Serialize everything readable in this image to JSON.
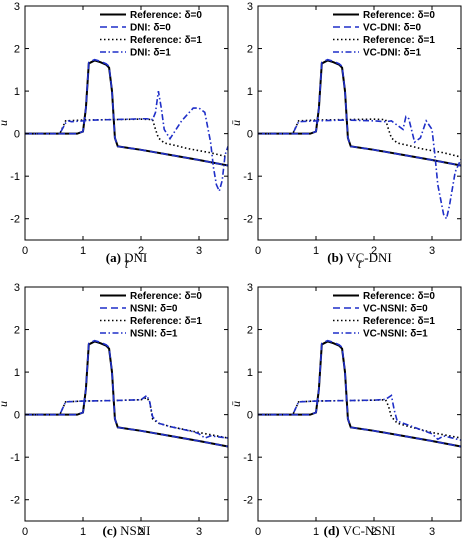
{
  "chart_data": [
    {
      "type": "line",
      "caption_letter": "(a)",
      "caption_text": "DNI",
      "xlabel": "t̄",
      "ylabel": "u",
      "xlim": [
        0,
        3.5
      ],
      "ylim": [
        -2.5,
        3
      ],
      "xticks": [
        0,
        1,
        2,
        3
      ],
      "yticks": [
        -2,
        -1,
        0,
        1,
        2,
        3
      ],
      "legend_position": "top-right",
      "series": [
        {
          "name": "Reference: δ=0",
          "color": "#000000",
          "style": "solid",
          "x": [
            0,
            0.9,
            1.0,
            1.05,
            1.1,
            1.2,
            1.3,
            1.4,
            1.45,
            1.5,
            1.55,
            1.6,
            2.0,
            2.5,
            3.0,
            3.5
          ],
          "y": [
            0,
            0,
            0.05,
            0.6,
            1.65,
            1.72,
            1.68,
            1.62,
            1.55,
            1.0,
            -0.1,
            -0.3,
            -0.38,
            -0.5,
            -0.62,
            -0.75
          ]
        },
        {
          "name": "DNI: δ=0",
          "color": "#1f2fc8",
          "style": "dash",
          "x": [
            0,
            0.9,
            1.0,
            1.05,
            1.1,
            1.2,
            1.3,
            1.4,
            1.45,
            1.5,
            1.55,
            1.6,
            2.0,
            2.5,
            3.0,
            3.5
          ],
          "y": [
            0,
            0,
            0.05,
            0.6,
            1.68,
            1.74,
            1.7,
            1.64,
            1.58,
            1.0,
            -0.1,
            -0.3,
            -0.38,
            -0.5,
            -0.62,
            -0.75
          ]
        },
        {
          "name": "Reference: δ=1",
          "color": "#000000",
          "style": "dot",
          "x": [
            0,
            0.6,
            0.7,
            1.0,
            1.5,
            2.0,
            2.2,
            2.25,
            2.3,
            2.4,
            2.6,
            2.8,
            3.0,
            3.2,
            3.5
          ],
          "y": [
            0,
            0,
            0.3,
            0.32,
            0.33,
            0.34,
            0.33,
            0.1,
            -0.1,
            -0.22,
            -0.28,
            -0.35,
            -0.4,
            -0.45,
            -0.55
          ]
        },
        {
          "name": "DNI: δ=1",
          "color": "#1f2fc8",
          "style": "dashdot",
          "x": [
            0,
            0.6,
            0.7,
            0.75,
            0.8,
            1.0,
            1.2,
            1.5,
            1.8,
            2.0,
            2.1,
            2.2,
            2.25,
            2.3,
            2.35,
            2.4,
            2.5,
            2.7,
            2.9,
            3.0,
            3.1,
            3.2,
            3.25,
            3.3,
            3.35,
            3.4,
            3.45,
            3.5
          ],
          "y": [
            0,
            0,
            0.25,
            0.3,
            0.28,
            0.3,
            0.32,
            0.33,
            0.34,
            0.35,
            0.35,
            0.33,
            0.5,
            1.0,
            0.6,
            0.1,
            -0.12,
            0.3,
            0.6,
            0.6,
            0.5,
            -0.2,
            -0.8,
            -1.2,
            -1.35,
            -1.1,
            -0.5,
            -0.3
          ]
        }
      ]
    },
    {
      "type": "line",
      "caption_letter": "(b)",
      "caption_text": "VC-DNI",
      "xlabel": "t̄",
      "ylabel": "ū",
      "xlim": [
        0,
        3.5
      ],
      "ylim": [
        -2.5,
        3
      ],
      "xticks": [
        0,
        1,
        2,
        3
      ],
      "yticks": [
        -2,
        -1,
        0,
        1,
        2,
        3
      ],
      "legend_position": "top-right",
      "series": [
        {
          "name": "Reference: δ=0",
          "color": "#000000",
          "style": "solid",
          "x": [
            0,
            0.9,
            1.0,
            1.05,
            1.1,
            1.2,
            1.3,
            1.4,
            1.45,
            1.5,
            1.55,
            1.6,
            2.0,
            2.5,
            3.0,
            3.5
          ],
          "y": [
            0,
            0,
            0.05,
            0.6,
            1.65,
            1.72,
            1.68,
            1.62,
            1.55,
            1.0,
            -0.1,
            -0.3,
            -0.38,
            -0.5,
            -0.62,
            -0.75
          ]
        },
        {
          "name": "VC-DNI: δ=0",
          "color": "#1f2fc8",
          "style": "dash",
          "x": [
            0,
            0.9,
            1.0,
            1.05,
            1.1,
            1.2,
            1.3,
            1.4,
            1.45,
            1.5,
            1.55,
            1.6,
            2.0,
            2.5,
            3.0,
            3.5
          ],
          "y": [
            0,
            0,
            0.05,
            0.6,
            1.68,
            1.74,
            1.7,
            1.64,
            1.58,
            1.0,
            -0.1,
            -0.3,
            -0.38,
            -0.5,
            -0.62,
            -0.75
          ]
        },
        {
          "name": "Reference: δ=1",
          "color": "#000000",
          "style": "dot",
          "x": [
            0,
            0.6,
            0.7,
            1.0,
            1.5,
            2.0,
            2.2,
            2.25,
            2.3,
            2.4,
            2.6,
            2.8,
            3.0,
            3.2,
            3.5
          ],
          "y": [
            0,
            0,
            0.3,
            0.32,
            0.33,
            0.34,
            0.33,
            0.1,
            -0.1,
            -0.22,
            -0.28,
            -0.35,
            -0.4,
            -0.45,
            -0.55
          ]
        },
        {
          "name": "VC-DNI: δ=1",
          "color": "#1f2fc8",
          "style": "dashdot",
          "x": [
            0,
            0.6,
            0.7,
            1.0,
            1.5,
            2.0,
            2.2,
            2.3,
            2.4,
            2.5,
            2.55,
            2.6,
            2.7,
            2.8,
            2.9,
            3.0,
            3.05,
            3.1,
            3.2,
            3.25,
            3.3,
            3.4,
            3.5
          ],
          "y": [
            0,
            0,
            0.28,
            0.3,
            0.32,
            0.3,
            0.28,
            0.3,
            0.2,
            0.1,
            0.4,
            0.35,
            -0.2,
            -0.1,
            0.3,
            0.1,
            -0.5,
            -1.2,
            -1.9,
            -2.0,
            -1.7,
            -0.9,
            -0.6
          ]
        }
      ]
    },
    {
      "type": "line",
      "caption_letter": "(c)",
      "caption_text": "NSNI",
      "xlabel": "t̄",
      "ylabel": "u",
      "xlim": [
        0,
        3.5
      ],
      "ylim": [
        -2.5,
        3
      ],
      "xticks": [
        0,
        1,
        2,
        3
      ],
      "yticks": [
        -2,
        -1,
        0,
        1,
        2,
        3
      ],
      "legend_position": "top-right",
      "series": [
        {
          "name": "Reference: δ=0",
          "color": "#000000",
          "style": "solid",
          "x": [
            0,
            0.9,
            1.0,
            1.05,
            1.1,
            1.2,
            1.3,
            1.4,
            1.45,
            1.5,
            1.55,
            1.6,
            2.0,
            2.5,
            3.0,
            3.5
          ],
          "y": [
            0,
            0,
            0.05,
            0.6,
            1.65,
            1.72,
            1.68,
            1.62,
            1.55,
            1.0,
            -0.1,
            -0.3,
            -0.38,
            -0.5,
            -0.62,
            -0.75
          ]
        },
        {
          "name": "NSNI: δ=0",
          "color": "#1f2fc8",
          "style": "dash",
          "x": [
            0,
            0.9,
            1.0,
            1.05,
            1.1,
            1.2,
            1.3,
            1.4,
            1.45,
            1.5,
            1.55,
            1.6,
            2.0,
            2.5,
            3.0,
            3.5
          ],
          "y": [
            0,
            0,
            0.05,
            0.6,
            1.68,
            1.74,
            1.7,
            1.64,
            1.58,
            1.0,
            -0.1,
            -0.3,
            -0.38,
            -0.5,
            -0.62,
            -0.75
          ]
        },
        {
          "name": "Reference: δ=1",
          "color": "#000000",
          "style": "dot",
          "x": [
            0,
            0.6,
            0.7,
            1.0,
            1.5,
            2.0,
            2.1,
            2.15,
            2.2,
            2.3,
            2.5,
            3.0,
            3.5
          ],
          "y": [
            0,
            0,
            0.3,
            0.32,
            0.33,
            0.35,
            0.4,
            0.3,
            -0.1,
            -0.2,
            -0.28,
            -0.42,
            -0.55
          ]
        },
        {
          "name": "NSNI: δ=1",
          "color": "#1f2fc8",
          "style": "dashdot",
          "x": [
            0,
            0.6,
            0.7,
            1.0,
            1.5,
            2.0,
            2.1,
            2.15,
            2.2,
            2.3,
            2.5,
            2.9,
            3.0,
            3.1,
            3.2,
            3.5
          ],
          "y": [
            0,
            0,
            0.3,
            0.32,
            0.33,
            0.35,
            0.45,
            0.3,
            -0.05,
            -0.2,
            -0.28,
            -0.4,
            -0.45,
            -0.55,
            -0.5,
            -0.55
          ]
        }
      ]
    },
    {
      "type": "line",
      "caption_letter": "(d)",
      "caption_text": "VC-NSNI",
      "xlabel": "t̄",
      "ylabel": "ū",
      "xlim": [
        0,
        3.5
      ],
      "ylim": [
        -2.5,
        3
      ],
      "xticks": [
        0,
        1,
        2,
        3
      ],
      "yticks": [
        -2,
        -1,
        0,
        1,
        2,
        3
      ],
      "legend_position": "top-right",
      "series": [
        {
          "name": "Reference: δ=0",
          "color": "#000000",
          "style": "solid",
          "x": [
            0,
            0.9,
            1.0,
            1.05,
            1.1,
            1.2,
            1.3,
            1.4,
            1.45,
            1.5,
            1.55,
            1.6,
            2.0,
            2.5,
            3.0,
            3.5
          ],
          "y": [
            0,
            0,
            0.05,
            0.6,
            1.65,
            1.72,
            1.68,
            1.62,
            1.55,
            1.0,
            -0.1,
            -0.3,
            -0.38,
            -0.5,
            -0.62,
            -0.75
          ]
        },
        {
          "name": "VC-NSNI: δ=0",
          "color": "#1f2fc8",
          "style": "dash",
          "x": [
            0,
            0.9,
            1.0,
            1.05,
            1.1,
            1.2,
            1.3,
            1.4,
            1.45,
            1.5,
            1.55,
            1.6,
            2.0,
            2.5,
            3.0,
            3.5
          ],
          "y": [
            0,
            0,
            0.05,
            0.6,
            1.68,
            1.74,
            1.7,
            1.64,
            1.58,
            1.0,
            -0.1,
            -0.3,
            -0.38,
            -0.5,
            -0.62,
            -0.75
          ]
        },
        {
          "name": "Reference: δ=1",
          "color": "#000000",
          "style": "dot",
          "x": [
            0,
            0.6,
            0.7,
            1.0,
            1.5,
            2.0,
            2.2,
            2.25,
            2.3,
            2.4,
            2.6,
            3.0,
            3.5
          ],
          "y": [
            0,
            0,
            0.3,
            0.32,
            0.33,
            0.34,
            0.35,
            0.2,
            -0.05,
            -0.2,
            -0.28,
            -0.42,
            -0.55
          ]
        },
        {
          "name": "VC-NSNI: δ=1",
          "color": "#1f2fc8",
          "style": "dashdot",
          "x": [
            0,
            0.6,
            0.7,
            1.0,
            1.5,
            2.0,
            2.2,
            2.3,
            2.35,
            2.4,
            2.6,
            3.0,
            3.1,
            3.2,
            3.5
          ],
          "y": [
            0,
            0,
            0.3,
            0.32,
            0.33,
            0.34,
            0.36,
            0.45,
            0.1,
            -0.15,
            -0.25,
            -0.45,
            -0.58,
            -0.5,
            -0.6
          ]
        }
      ]
    }
  ]
}
